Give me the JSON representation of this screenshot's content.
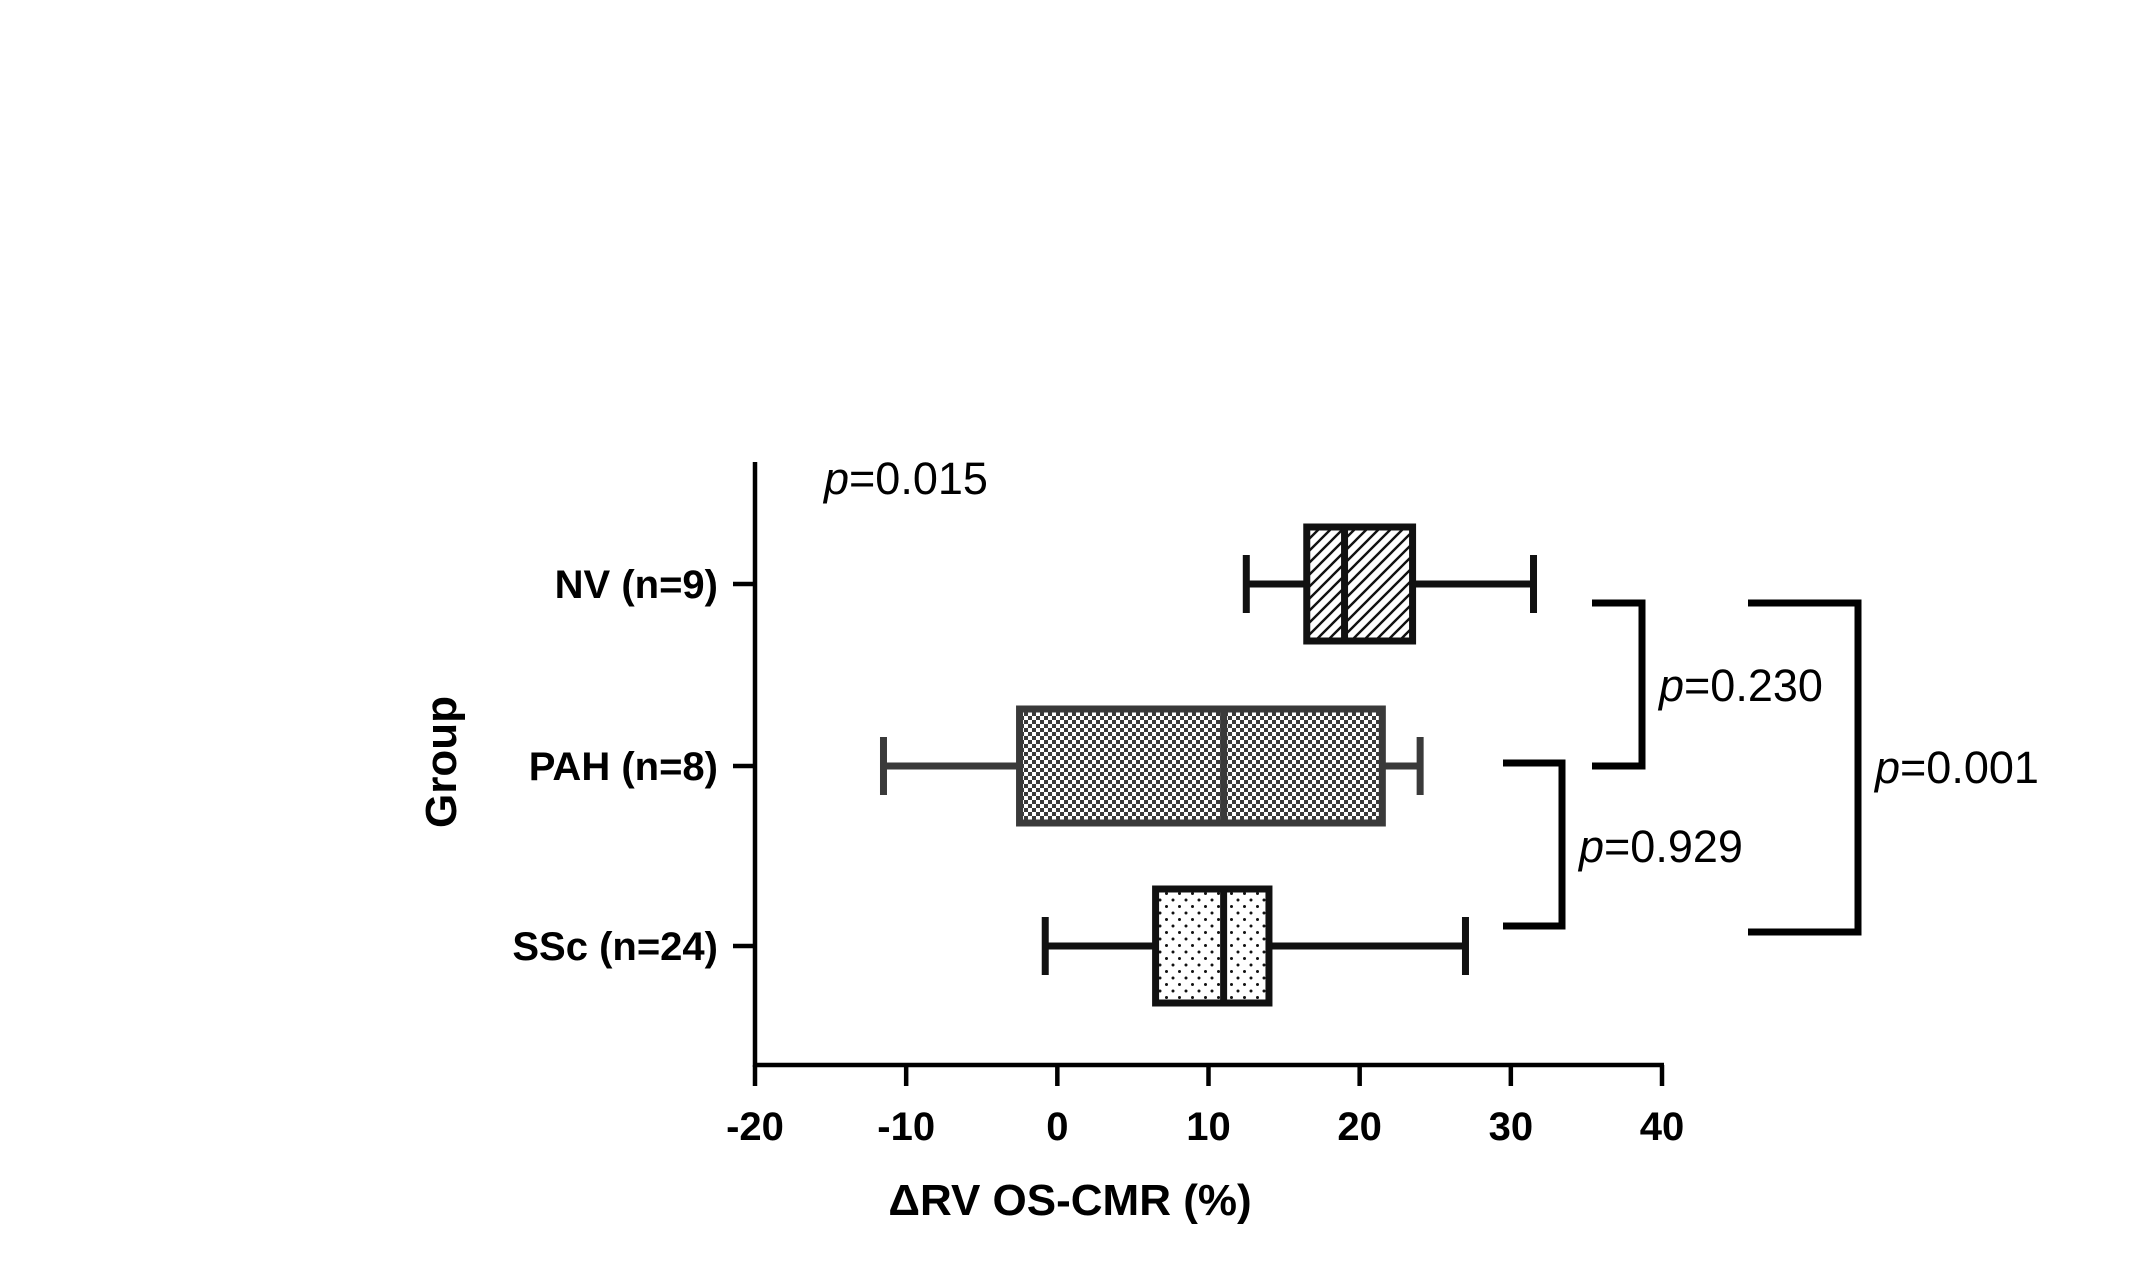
{
  "chart_data": {
    "type": "box",
    "orientation": "horizontal",
    "xlabel": "ΔRV OS-CMR (%)",
    "ylabel": "Group",
    "xlim": [
      -20,
      40
    ],
    "xticks": [
      -20,
      -10,
      0,
      10,
      20,
      30,
      40
    ],
    "xtick_labels": [
      "-20",
      "-10",
      "0",
      "10",
      "20",
      "30",
      "40"
    ],
    "grid": false,
    "groups": [
      {
        "label": "NV (n=9)",
        "min": 12.5,
        "q1": 16.5,
        "median": 19.0,
        "q3": 23.5,
        "max": 31.5,
        "fill_pattern": "diagonal-hatch",
        "edge_color": "#111111"
      },
      {
        "label": "PAH (n=8)",
        "min": -11.5,
        "q1": -2.5,
        "median": 11.0,
        "q3": 21.5,
        "max": 24.0,
        "fill_pattern": "checkerboard",
        "edge_color": "#3a3a3a"
      },
      {
        "label": "SSc (n=24)",
        "min": -0.8,
        "q1": 6.5,
        "median": 11.0,
        "q3": 14.0,
        "max": 27.0,
        "fill_pattern": "dots",
        "edge_color": "#111111"
      }
    ],
    "annotations": {
      "overall": {
        "p": "p",
        "value": "=0.015"
      },
      "comparisons": [
        {
          "between": [
            "NV (n=9)",
            "PAH (n=8)"
          ],
          "p": "p",
          "value": "=0.230"
        },
        {
          "between": [
            "PAH (n=8)",
            "SSc (n=24)"
          ],
          "p": "p",
          "value": "=0.929"
        },
        {
          "between": [
            "NV (n=9)",
            "SSc (n=24)"
          ],
          "p": "p",
          "value": "=0.001"
        }
      ]
    }
  }
}
